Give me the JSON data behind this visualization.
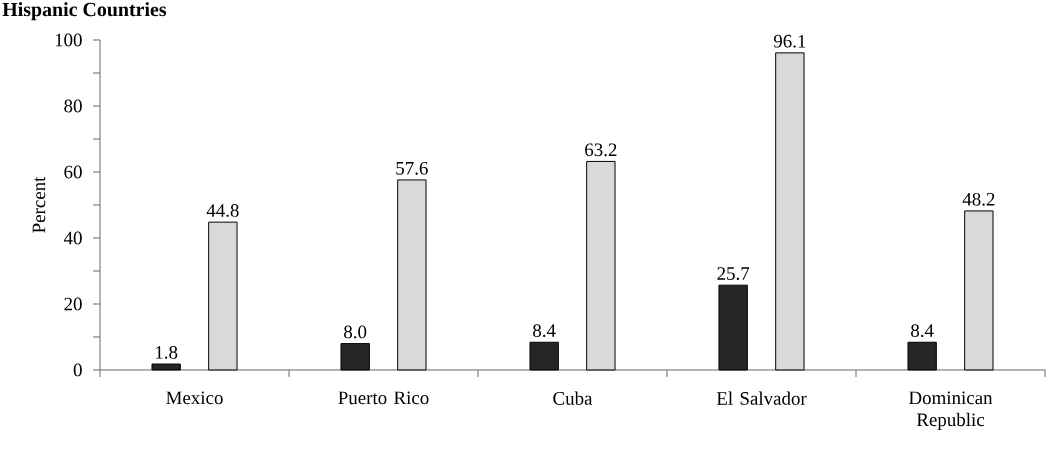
{
  "chart_data": {
    "type": "bar",
    "title": "Hispanic Countries",
    "ylabel": "Percent",
    "categories": [
      "Mexico",
      "Puerto Rico",
      "Cuba",
      "El Salvador",
      "Dominican Republic"
    ],
    "series": [
      {
        "color": "#262626",
        "values": [
          1.8,
          8.0,
          8.4,
          25.7,
          8.4
        ],
        "value_labels": [
          "1.8",
          "8.0",
          "8.4",
          "25.7",
          "8.4"
        ]
      },
      {
        "color": "#d9d9d9",
        "values": [
          44.8,
          57.6,
          63.2,
          96.1,
          48.2
        ],
        "value_labels": [
          "44.8",
          "57.6",
          "63.2",
          "96.1",
          "48.2"
        ]
      }
    ],
    "ylim": [
      0,
      100
    ],
    "yticks": [
      0,
      {
        "value": 10,
        "label": null
      },
      20,
      {
        "value": 30,
        "label": null
      },
      40,
      {
        "value": 50,
        "label": null
      },
      60,
      {
        "value": 70,
        "label": null
      },
      80,
      {
        "value": 90,
        "label": null
      },
      100
    ],
    "grid": false
  }
}
